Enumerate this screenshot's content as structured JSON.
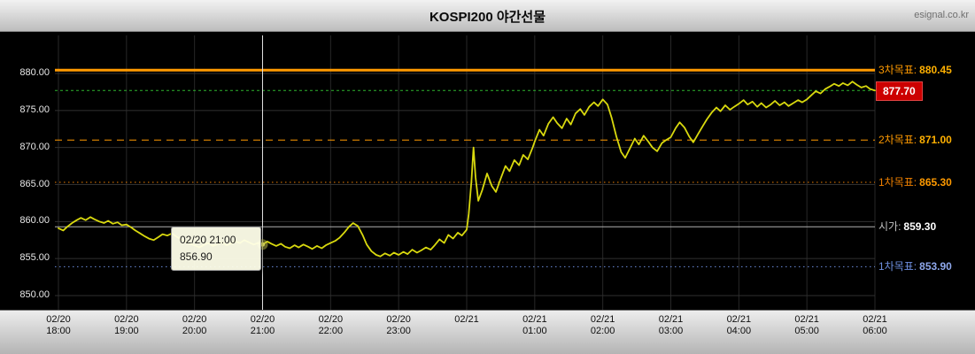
{
  "header": {
    "title": "KOSPI200 야간선물",
    "watermark": "esignal.co.kr"
  },
  "chart_data": {
    "type": "line",
    "title": "KOSPI200 야간선물",
    "grid": true,
    "background": "#000000",
    "y_axis": {
      "min": 850,
      "max": 883.5,
      "ticks": [
        880,
        875,
        870,
        865,
        860,
        855,
        850
      ],
      "tick_labels": [
        "880.00",
        "875.00",
        "870.00",
        "865.00",
        "860.00",
        "855.00",
        "850.00"
      ]
    },
    "x_axis": {
      "labels": [
        {
          "date": "02/20",
          "time": "18:00"
        },
        {
          "date": "02/20",
          "time": "19:00"
        },
        {
          "date": "02/20",
          "time": "20:00"
        },
        {
          "date": "02/20",
          "time": "21:00"
        },
        {
          "date": "02/20",
          "time": "22:00"
        },
        {
          "date": "02/20",
          "time": "23:00"
        },
        {
          "date": "02/21",
          "time": ""
        },
        {
          "date": "02/21",
          "time": "01:00"
        },
        {
          "date": "02/21",
          "time": "02:00"
        },
        {
          "date": "02/21",
          "time": "03:00"
        },
        {
          "date": "02/21",
          "time": "04:00"
        },
        {
          "date": "02/21",
          "time": "05:00"
        },
        {
          "date": "02/21",
          "time": "06:00"
        }
      ]
    },
    "reference_lines": [
      {
        "name": "target-3",
        "label": "3차목표:",
        "value": "880.45",
        "level": 880.45,
        "color": "#ff9a00",
        "style": "solid",
        "width": 3,
        "label_color": "#ff9a00",
        "value_color": "#ffb000"
      },
      {
        "name": "current-price",
        "label": "",
        "value": "877.70",
        "level": 877.7,
        "color": "#2fb52f",
        "style": "dash-fine",
        "width": 1,
        "badge": true,
        "badge_bg": "#cc0000",
        "badge_text_color": "#ffffff"
      },
      {
        "name": "target-2",
        "label": "2차목표:",
        "value": "871.00",
        "level": 871.0,
        "color": "#ff9a00",
        "style": "dash",
        "width": 1,
        "label_color": "#ff9a00",
        "value_color": "#ffb000"
      },
      {
        "name": "target-1-up",
        "label": "1차목표:",
        "value": "865.30",
        "level": 865.3,
        "color": "#f08000",
        "style": "dot",
        "width": 1,
        "label_color": "#f08000",
        "value_color": "#ff9a00"
      },
      {
        "name": "open-price",
        "label": "시가:",
        "value": "859.30",
        "level": 859.3,
        "color": "#b0b0b0",
        "style": "solid",
        "width": 1,
        "label_color": "#c2c2c2",
        "value_color": "#ffffff"
      },
      {
        "name": "target-1-down",
        "label": "1차목표:",
        "value": "853.90",
        "level": 853.9,
        "color": "#6e8fe0",
        "style": "dot",
        "width": 1,
        "label_color": "#6e8fe0",
        "value_color": "#8fa8ec"
      }
    ],
    "crosshair": {
      "time_index": 3.0,
      "price": 856.9,
      "time_label": "02/20 21:00"
    },
    "tooltip": {
      "line1": "02/20 21:00",
      "line2": "856.90"
    },
    "series": [
      {
        "name": "KOSPI200 night futures price",
        "color": "#d9d90e",
        "points": [
          [
            0.0,
            859.1
          ],
          [
            0.07,
            858.8
          ],
          [
            0.13,
            859.3
          ],
          [
            0.2,
            859.8
          ],
          [
            0.27,
            860.2
          ],
          [
            0.33,
            860.5
          ],
          [
            0.4,
            860.2
          ],
          [
            0.47,
            860.6
          ],
          [
            0.53,
            860.3
          ],
          [
            0.6,
            860.0
          ],
          [
            0.67,
            859.8
          ],
          [
            0.73,
            860.1
          ],
          [
            0.8,
            859.7
          ],
          [
            0.87,
            859.9
          ],
          [
            0.93,
            859.5
          ],
          [
            1.0,
            859.6
          ],
          [
            1.07,
            859.2
          ],
          [
            1.13,
            858.8
          ],
          [
            1.2,
            858.4
          ],
          [
            1.27,
            858.0
          ],
          [
            1.33,
            857.7
          ],
          [
            1.4,
            857.5
          ],
          [
            1.47,
            857.9
          ],
          [
            1.53,
            858.3
          ],
          [
            1.6,
            858.1
          ],
          [
            1.67,
            858.4
          ],
          [
            1.73,
            858.0
          ],
          [
            1.8,
            857.6
          ],
          [
            1.87,
            857.3
          ],
          [
            1.93,
            857.0
          ],
          [
            2.0,
            856.8
          ],
          [
            2.07,
            856.5
          ],
          [
            2.13,
            856.8
          ],
          [
            2.2,
            857.1
          ],
          [
            2.27,
            856.7
          ],
          [
            2.33,
            856.9
          ],
          [
            2.4,
            857.2
          ],
          [
            2.47,
            856.8
          ],
          [
            2.53,
            857.0
          ],
          [
            2.6,
            857.3
          ],
          [
            2.67,
            857.1
          ],
          [
            2.73,
            857.5
          ],
          [
            2.8,
            857.2
          ],
          [
            2.87,
            856.9
          ],
          [
            2.93,
            857.1
          ],
          [
            3.0,
            856.9
          ],
          [
            3.07,
            857.3
          ],
          [
            3.13,
            857.0
          ],
          [
            3.2,
            856.7
          ],
          [
            3.27,
            857.0
          ],
          [
            3.33,
            856.6
          ],
          [
            3.4,
            856.4
          ],
          [
            3.47,
            856.8
          ],
          [
            3.53,
            856.5
          ],
          [
            3.6,
            856.9
          ],
          [
            3.67,
            856.6
          ],
          [
            3.73,
            856.3
          ],
          [
            3.8,
            856.7
          ],
          [
            3.87,
            856.4
          ],
          [
            3.93,
            856.8
          ],
          [
            4.0,
            857.1
          ],
          [
            4.07,
            857.4
          ],
          [
            4.13,
            857.8
          ],
          [
            4.2,
            858.5
          ],
          [
            4.27,
            859.3
          ],
          [
            4.33,
            859.8
          ],
          [
            4.4,
            859.4
          ],
          [
            4.47,
            858.2
          ],
          [
            4.53,
            856.9
          ],
          [
            4.6,
            856.0
          ],
          [
            4.67,
            855.5
          ],
          [
            4.73,
            855.3
          ],
          [
            4.8,
            855.7
          ],
          [
            4.87,
            855.4
          ],
          [
            4.93,
            855.8
          ],
          [
            5.0,
            855.5
          ],
          [
            5.07,
            855.9
          ],
          [
            5.13,
            855.6
          ],
          [
            5.2,
            856.2
          ],
          [
            5.27,
            855.8
          ],
          [
            5.33,
            856.1
          ],
          [
            5.4,
            856.5
          ],
          [
            5.47,
            856.2
          ],
          [
            5.53,
            856.8
          ],
          [
            5.6,
            857.6
          ],
          [
            5.67,
            857.1
          ],
          [
            5.73,
            858.2
          ],
          [
            5.8,
            857.7
          ],
          [
            5.87,
            858.5
          ],
          [
            5.93,
            858.1
          ],
          [
            6.0,
            858.9
          ],
          [
            6.03,
            861.0
          ],
          [
            6.07,
            865.5
          ],
          [
            6.1,
            870.0
          ],
          [
            6.13,
            866.0
          ],
          [
            6.17,
            862.8
          ],
          [
            6.23,
            864.3
          ],
          [
            6.3,
            866.5
          ],
          [
            6.37,
            864.8
          ],
          [
            6.43,
            864.0
          ],
          [
            6.5,
            865.8
          ],
          [
            6.57,
            867.5
          ],
          [
            6.63,
            866.8
          ],
          [
            6.7,
            868.3
          ],
          [
            6.77,
            867.6
          ],
          [
            6.83,
            869.0
          ],
          [
            6.9,
            868.4
          ],
          [
            6.97,
            870.0
          ],
          [
            7.0,
            870.8
          ],
          [
            7.07,
            872.4
          ],
          [
            7.13,
            871.6
          ],
          [
            7.2,
            873.2
          ],
          [
            7.27,
            874.1
          ],
          [
            7.33,
            873.3
          ],
          [
            7.4,
            872.6
          ],
          [
            7.47,
            873.9
          ],
          [
            7.53,
            873.1
          ],
          [
            7.6,
            874.6
          ],
          [
            7.67,
            875.2
          ],
          [
            7.73,
            874.4
          ],
          [
            7.8,
            875.5
          ],
          [
            7.87,
            876.1
          ],
          [
            7.93,
            875.6
          ],
          [
            8.0,
            876.5
          ],
          [
            8.07,
            875.8
          ],
          [
            8.13,
            874.0
          ],
          [
            8.2,
            871.5
          ],
          [
            8.27,
            869.4
          ],
          [
            8.33,
            868.6
          ],
          [
            8.4,
            869.9
          ],
          [
            8.47,
            871.2
          ],
          [
            8.53,
            870.4
          ],
          [
            8.6,
            871.6
          ],
          [
            8.67,
            870.8
          ],
          [
            8.73,
            870.0
          ],
          [
            8.8,
            869.5
          ],
          [
            8.87,
            870.6
          ],
          [
            8.93,
            871.0
          ],
          [
            9.0,
            871.4
          ],
          [
            9.07,
            872.6
          ],
          [
            9.13,
            873.4
          ],
          [
            9.2,
            872.7
          ],
          [
            9.27,
            871.5
          ],
          [
            9.33,
            870.7
          ],
          [
            9.4,
            871.8
          ],
          [
            9.47,
            872.9
          ],
          [
            9.53,
            873.8
          ],
          [
            9.6,
            874.7
          ],
          [
            9.67,
            875.4
          ],
          [
            9.73,
            874.9
          ],
          [
            9.8,
            875.7
          ],
          [
            9.87,
            875.1
          ],
          [
            9.93,
            875.5
          ],
          [
            10.0,
            875.9
          ],
          [
            10.07,
            876.4
          ],
          [
            10.13,
            875.8
          ],
          [
            10.2,
            876.2
          ],
          [
            10.27,
            875.5
          ],
          [
            10.33,
            876.0
          ],
          [
            10.4,
            875.4
          ],
          [
            10.47,
            875.8
          ],
          [
            10.53,
            876.3
          ],
          [
            10.6,
            875.7
          ],
          [
            10.67,
            876.1
          ],
          [
            10.73,
            875.6
          ],
          [
            10.8,
            876.0
          ],
          [
            10.87,
            876.4
          ],
          [
            10.93,
            876.1
          ],
          [
            11.0,
            876.5
          ],
          [
            11.07,
            877.1
          ],
          [
            11.13,
            877.6
          ],
          [
            11.2,
            877.3
          ],
          [
            11.27,
            877.9
          ],
          [
            11.33,
            878.2
          ],
          [
            11.4,
            878.6
          ],
          [
            11.47,
            878.3
          ],
          [
            11.53,
            878.7
          ],
          [
            11.6,
            878.4
          ],
          [
            11.67,
            878.9
          ],
          [
            11.73,
            878.5
          ],
          [
            11.8,
            878.1
          ],
          [
            11.87,
            878.3
          ],
          [
            11.93,
            877.9
          ],
          [
            12.0,
            877.7
          ]
        ]
      }
    ]
  }
}
